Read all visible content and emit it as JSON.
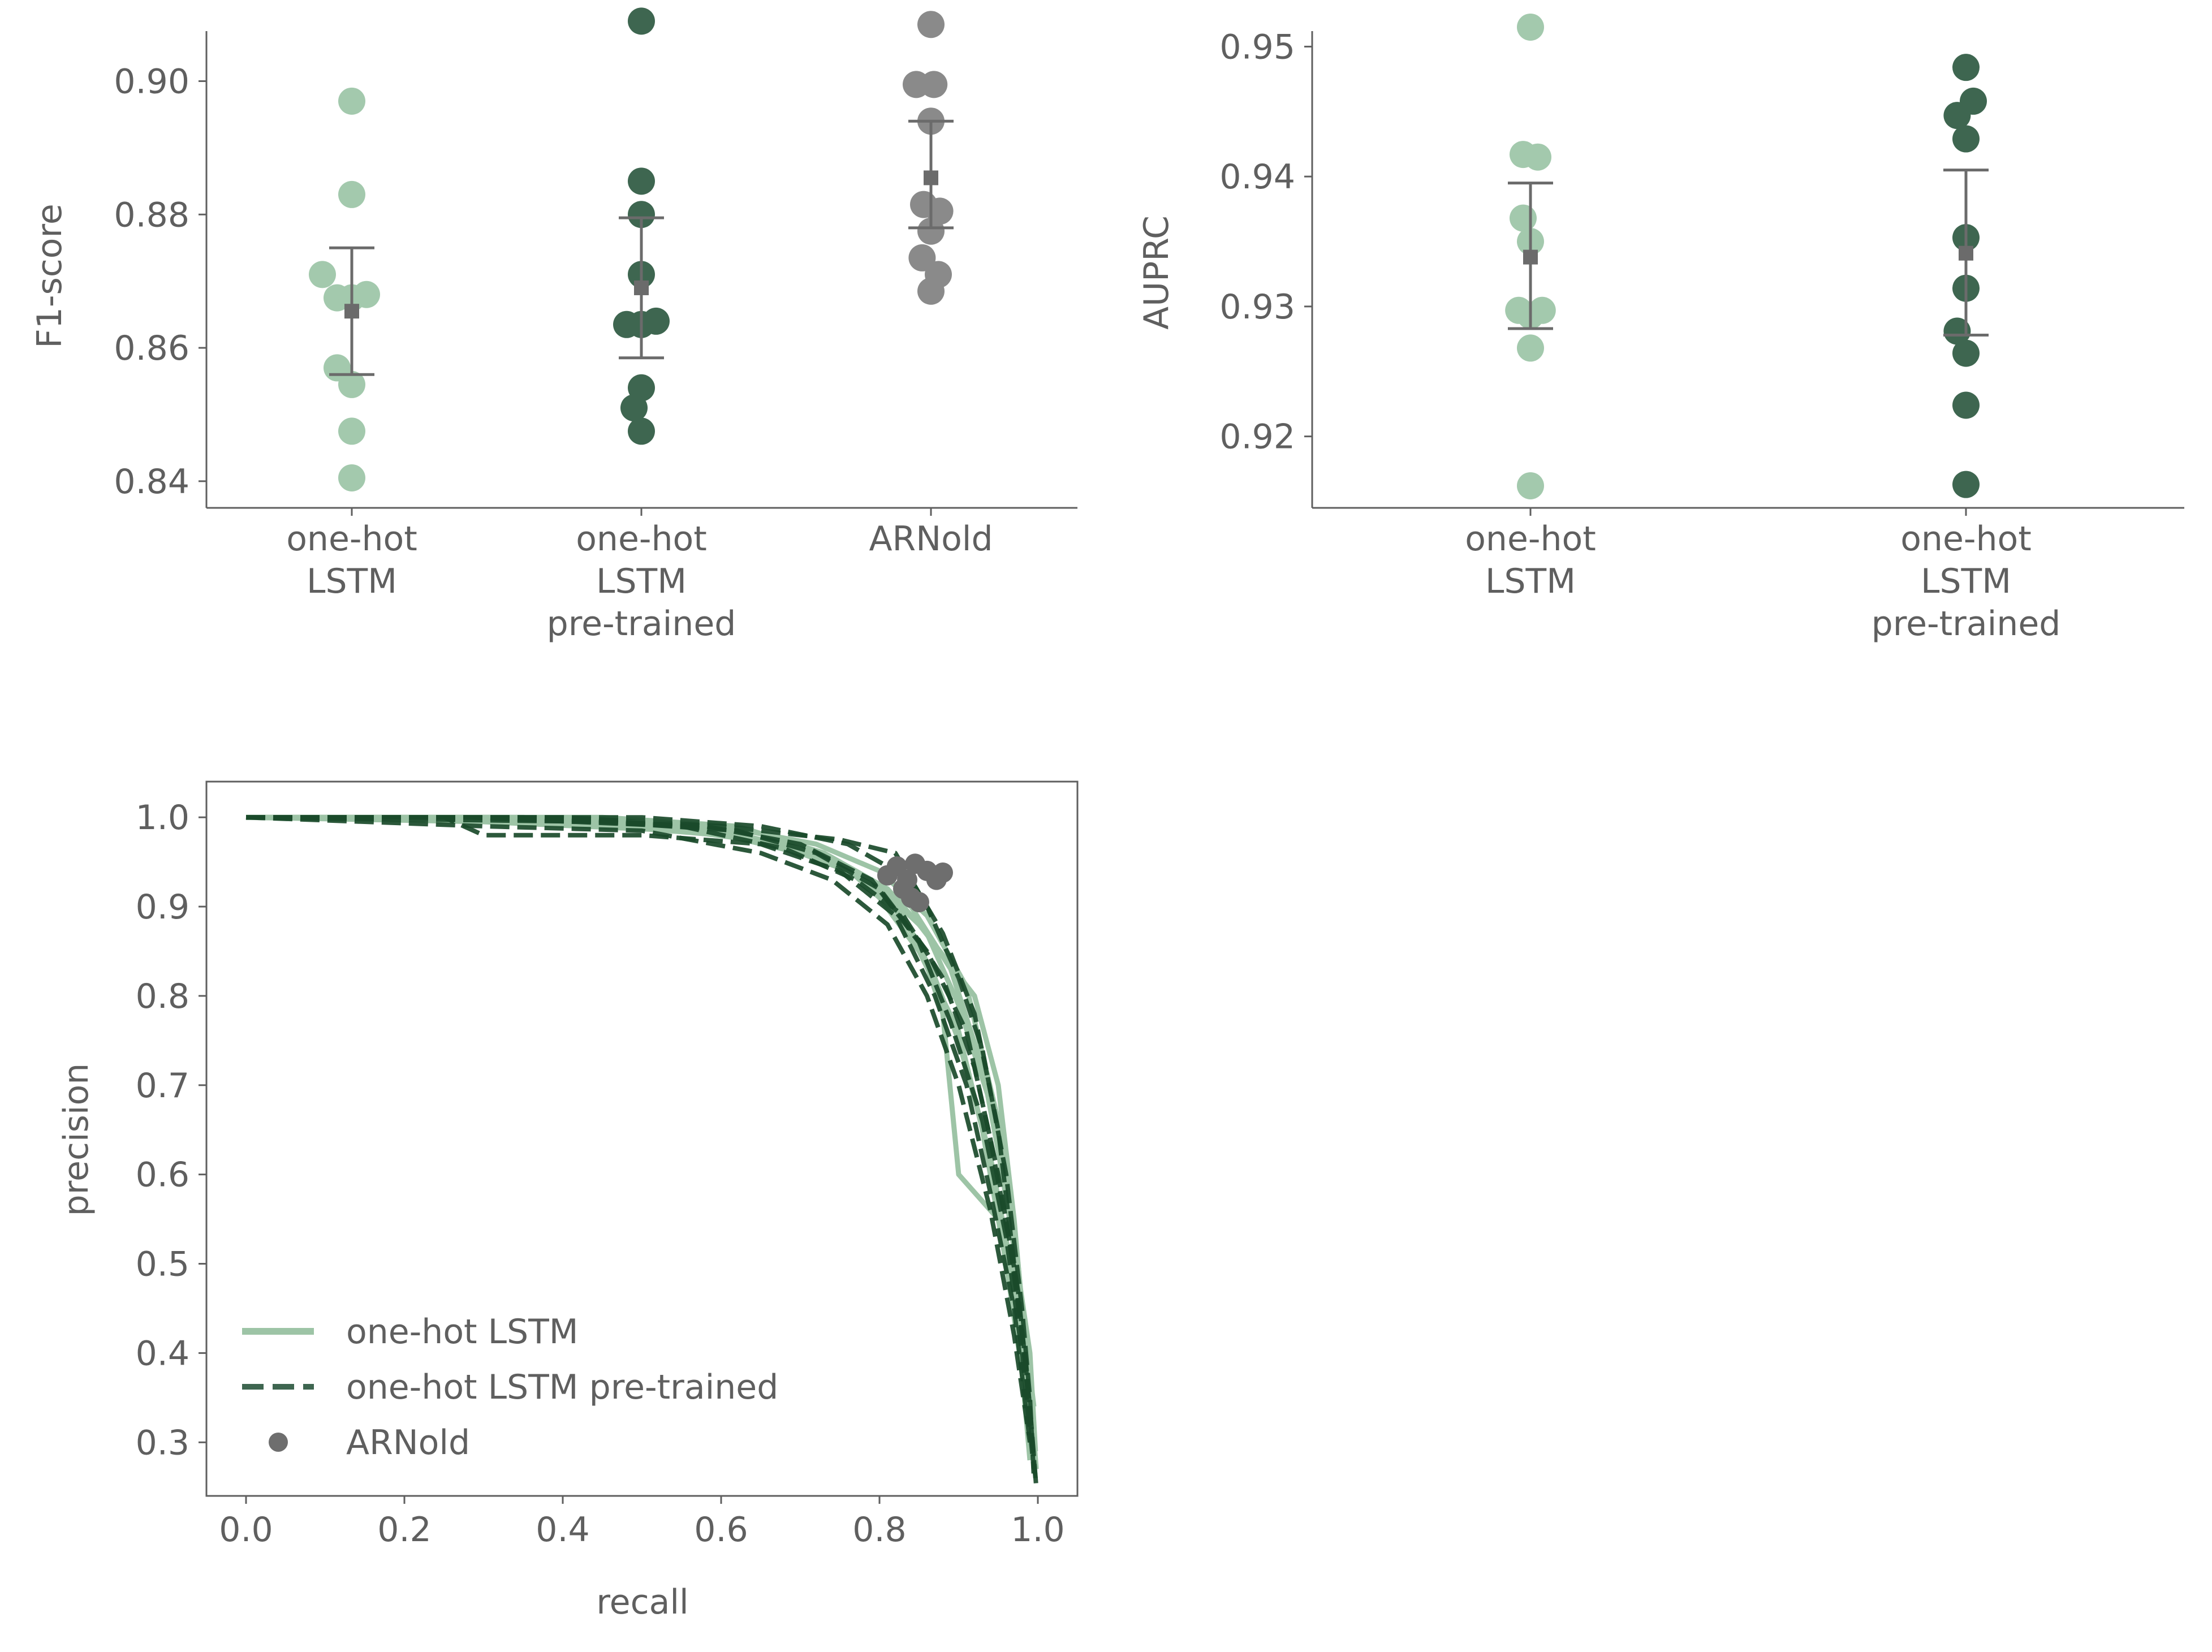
{
  "colors": {
    "lstm": "#a3c9ad",
    "pretrained": "#3e6650",
    "arnold": "#8a8a8a",
    "curve_light": "#9dc4a6",
    "curve_dark": "#1a4a2a",
    "arnold_pr": "#6e6e6e",
    "axis": "#5f5f5f",
    "stat": "#6b6b6b"
  },
  "chart_data": [
    {
      "id": "f1",
      "type": "scatter",
      "ylabel": "F1-score",
      "xlabel": "",
      "ylim": [
        0.836,
        0.912
      ],
      "yticks": [
        0.84,
        0.86,
        0.88,
        0.9
      ],
      "ytick_labels": [
        "0.84",
        "0.86",
        "0.88",
        "0.90"
      ],
      "categories": [
        {
          "lines": [
            "one-hot",
            "LSTM"
          ]
        },
        {
          "lines": [
            "one-hot",
            "LSTM",
            "pre-trained"
          ]
        },
        {
          "lines": [
            "ARNold"
          ]
        }
      ],
      "series": [
        {
          "values": [
            0.897,
            0.883,
            0.871,
            0.8675,
            0.8675,
            0.868,
            0.857,
            0.8545,
            0.8475,
            0.8405
          ],
          "mean": 0.8655,
          "err": [
            0.856,
            0.875
          ]
        },
        {
          "values": [
            0.909,
            0.885,
            0.88,
            0.871,
            0.8635,
            0.8635,
            0.864,
            0.854,
            0.851,
            0.8475
          ],
          "mean": 0.869,
          "err": [
            0.8585,
            0.8795
          ]
        },
        {
          "values": [
            0.9085,
            0.8995,
            0.8995,
            0.894,
            0.8815,
            0.8805,
            0.8775,
            0.8735,
            0.871,
            0.8685
          ],
          "mean": 0.8855,
          "err": [
            0.878,
            0.894
          ]
        }
      ]
    },
    {
      "id": "auprc",
      "type": "scatter",
      "ylabel": "AUPRC",
      "xlabel": "",
      "ylim": [
        0.9145,
        0.9535
      ],
      "yticks": [
        0.92,
        0.93,
        0.94,
        0.95
      ],
      "ytick_labels": [
        "0.92",
        "0.93",
        "0.94",
        "0.95"
      ],
      "categories": [
        {
          "lines": [
            "one-hot",
            "LSTM"
          ]
        },
        {
          "lines": [
            "one-hot",
            "LSTM",
            "pre-trained"
          ]
        }
      ],
      "series": [
        {
          "values": [
            0.9515,
            0.9417,
            0.9415,
            0.9368,
            0.935,
            0.9297,
            0.9297,
            0.9293,
            0.9268,
            0.9162
          ],
          "mean": 0.9338,
          "err": [
            0.9283,
            0.9395
          ]
        },
        {
          "values": [
            0.9484,
            0.9458,
            0.9447,
            0.9429,
            0.9353,
            0.9314,
            0.9281,
            0.9264,
            0.9224,
            0.9163
          ],
          "mean": 0.9341,
          "err": [
            0.9278,
            0.9405
          ]
        }
      ]
    },
    {
      "id": "pr",
      "type": "line",
      "xlabel": "recall",
      "ylabel": "precision",
      "xlim": [
        -0.05,
        1.05
      ],
      "ylim": [
        0.24,
        1.04
      ],
      "xticks": [
        0.0,
        0.2,
        0.4,
        0.6,
        0.8,
        1.0
      ],
      "xtick_labels": [
        "0.0",
        "0.2",
        "0.4",
        "0.6",
        "0.8",
        "1.0"
      ],
      "yticks": [
        0.3,
        0.4,
        0.5,
        0.6,
        0.7,
        0.8,
        0.9,
        1.0
      ],
      "ytick_labels": [
        "0.3",
        "0.4",
        "0.5",
        "0.6",
        "0.7",
        "0.8",
        "0.9",
        "1.0"
      ],
      "legend": {
        "placement": "lower-left",
        "entries": [
          {
            "label": "one-hot LSTM",
            "style": "solid-light"
          },
          {
            "label": "one-hot LSTM pre-trained",
            "style": "dashed-dark"
          },
          {
            "label": "ARNold",
            "style": "dot"
          }
        ]
      },
      "series": [
        {
          "name": "one-hot LSTM",
          "style": "solid",
          "curves": [
            [
              [
                0.0,
                1.0
              ],
              [
                0.3,
                1.0
              ],
              [
                0.55,
                0.99
              ],
              [
                0.65,
                0.975
              ],
              [
                0.75,
                0.95
              ],
              [
                0.8,
                0.91
              ],
              [
                0.85,
                0.85
              ],
              [
                0.9,
                0.76
              ],
              [
                0.93,
                0.65
              ],
              [
                0.96,
                0.5
              ],
              [
                0.98,
                0.38
              ],
              [
                0.99,
                0.28
              ]
            ],
            [
              [
                0.0,
                1.0
              ],
              [
                0.35,
                1.0
              ],
              [
                0.6,
                0.985
              ],
              [
                0.7,
                0.965
              ],
              [
                0.78,
                0.93
              ],
              [
                0.83,
                0.89
              ],
              [
                0.87,
                0.82
              ],
              [
                0.9,
                0.75
              ],
              [
                0.94,
                0.62
              ],
              [
                0.97,
                0.48
              ],
              [
                0.99,
                0.33
              ]
            ],
            [
              [
                0.0,
                1.0
              ],
              [
                0.4,
                0.995
              ],
              [
                0.6,
                0.98
              ],
              [
                0.72,
                0.96
              ],
              [
                0.8,
                0.92
              ],
              [
                0.85,
                0.86
              ],
              [
                0.88,
                0.78
              ],
              [
                0.9,
                0.6
              ],
              [
                0.95,
                0.55
              ],
              [
                0.98,
                0.42
              ],
              [
                0.995,
                0.3
              ]
            ],
            [
              [
                0.0,
                1.0
              ],
              [
                0.3,
                0.995
              ],
              [
                0.55,
                0.985
              ],
              [
                0.68,
                0.97
              ],
              [
                0.77,
                0.94
              ],
              [
                0.84,
                0.9
              ],
              [
                0.89,
                0.83
              ],
              [
                0.93,
                0.72
              ],
              [
                0.96,
                0.58
              ],
              [
                0.98,
                0.45
              ],
              [
                0.995,
                0.34
              ]
            ],
            [
              [
                0.0,
                1.0
              ],
              [
                0.45,
                1.0
              ],
              [
                0.62,
                0.99
              ],
              [
                0.73,
                0.96
              ],
              [
                0.81,
                0.92
              ],
              [
                0.86,
                0.87
              ],
              [
                0.9,
                0.79
              ],
              [
                0.94,
                0.68
              ],
              [
                0.97,
                0.52
              ],
              [
                0.99,
                0.4
              ],
              [
                0.997,
                0.29
              ]
            ],
            [
              [
                0.0,
                1.0
              ],
              [
                0.38,
                0.995
              ],
              [
                0.58,
                0.985
              ],
              [
                0.7,
                0.96
              ],
              [
                0.79,
                0.93
              ],
              [
                0.85,
                0.88
              ],
              [
                0.92,
                0.8
              ],
              [
                0.95,
                0.7
              ],
              [
                0.97,
                0.55
              ],
              [
                0.985,
                0.4
              ],
              [
                0.995,
                0.32
              ]
            ],
            [
              [
                0.0,
                1.0
              ],
              [
                0.33,
                1.0
              ],
              [
                0.6,
                0.99
              ],
              [
                0.72,
                0.97
              ],
              [
                0.8,
                0.94
              ],
              [
                0.86,
                0.89
              ],
              [
                0.91,
                0.81
              ],
              [
                0.95,
                0.66
              ],
              [
                0.975,
                0.5
              ],
              [
                0.99,
                0.36
              ],
              [
                0.998,
                0.27
              ]
            ]
          ]
        },
        {
          "name": "one-hot LSTM pre-trained",
          "style": "dashed",
          "curves": [
            [
              [
                0.0,
                1.0
              ],
              [
                0.25,
                1.0
              ],
              [
                0.3,
                0.98
              ],
              [
                0.5,
                0.98
              ],
              [
                0.65,
                0.97
              ],
              [
                0.75,
                0.94
              ],
              [
                0.82,
                0.89
              ],
              [
                0.87,
                0.8
              ],
              [
                0.91,
                0.7
              ],
              [
                0.94,
                0.58
              ],
              [
                0.97,
                0.45
              ],
              [
                0.99,
                0.3
              ]
            ],
            [
              [
                0.0,
                1.0
              ],
              [
                0.4,
                1.0
              ],
              [
                0.6,
                0.99
              ],
              [
                0.75,
                0.975
              ],
              [
                0.82,
                0.96
              ],
              [
                0.86,
                0.9
              ],
              [
                0.9,
                0.82
              ],
              [
                0.93,
                0.74
              ],
              [
                0.96,
                0.6
              ],
              [
                0.98,
                0.45
              ],
              [
                0.99,
                0.35
              ],
              [
                0.995,
                0.26
              ]
            ],
            [
              [
                0.0,
                1.0
              ],
              [
                0.3,
                0.99
              ],
              [
                0.5,
                0.985
              ],
              [
                0.65,
                0.96
              ],
              [
                0.74,
                0.93
              ],
              [
                0.81,
                0.88
              ],
              [
                0.86,
                0.8
              ],
              [
                0.9,
                0.7
              ],
              [
                0.94,
                0.56
              ],
              [
                0.97,
                0.42
              ],
              [
                0.99,
                0.3
              ]
            ],
            [
              [
                0.0,
                1.0
              ],
              [
                0.5,
                1.0
              ],
              [
                0.65,
                0.99
              ],
              [
                0.76,
                0.97
              ],
              [
                0.84,
                0.93
              ],
              [
                0.88,
                0.87
              ],
              [
                0.92,
                0.78
              ],
              [
                0.95,
                0.65
              ],
              [
                0.97,
                0.5
              ],
              [
                0.985,
                0.38
              ],
              [
                0.995,
                0.28
              ]
            ],
            [
              [
                0.0,
                1.0
              ],
              [
                0.35,
                1.0
              ],
              [
                0.58,
                0.99
              ],
              [
                0.7,
                0.97
              ],
              [
                0.79,
                0.93
              ],
              [
                0.85,
                0.86
              ],
              [
                0.89,
                0.77
              ],
              [
                0.93,
                0.66
              ],
              [
                0.96,
                0.53
              ],
              [
                0.98,
                0.4
              ],
              [
                0.995,
                0.27
              ]
            ],
            [
              [
                0.0,
                1.0
              ],
              [
                0.45,
                0.995
              ],
              [
                0.62,
                0.985
              ],
              [
                0.72,
                0.96
              ],
              [
                0.8,
                0.92
              ],
              [
                0.86,
                0.85
              ],
              [
                0.91,
                0.76
              ],
              [
                0.94,
                0.64
              ],
              [
                0.965,
                0.52
              ],
              [
                0.985,
                0.39
              ],
              [
                0.997,
                0.26
              ]
            ],
            [
              [
                0.0,
                1.0
              ],
              [
                0.28,
                1.0
              ],
              [
                0.55,
                0.99
              ],
              [
                0.68,
                0.965
              ],
              [
                0.77,
                0.93
              ],
              [
                0.83,
                0.89
              ],
              [
                0.88,
                0.82
              ],
              [
                0.92,
                0.72
              ],
              [
                0.95,
                0.6
              ],
              [
                0.975,
                0.47
              ],
              [
                0.99,
                0.34
              ],
              [
                0.998,
                0.25
              ]
            ]
          ]
        },
        {
          "name": "ARNold",
          "style": "points",
          "points": [
            [
              0.81,
              0.935
            ],
            [
              0.822,
              0.945
            ],
            [
              0.835,
              0.93
            ],
            [
              0.845,
              0.948
            ],
            [
              0.83,
              0.92
            ],
            [
              0.85,
              0.905
            ],
            [
              0.86,
              0.94
            ],
            [
              0.872,
              0.93
            ],
            [
              0.88,
              0.938
            ],
            [
              0.84,
              0.91
            ]
          ]
        }
      ]
    }
  ]
}
